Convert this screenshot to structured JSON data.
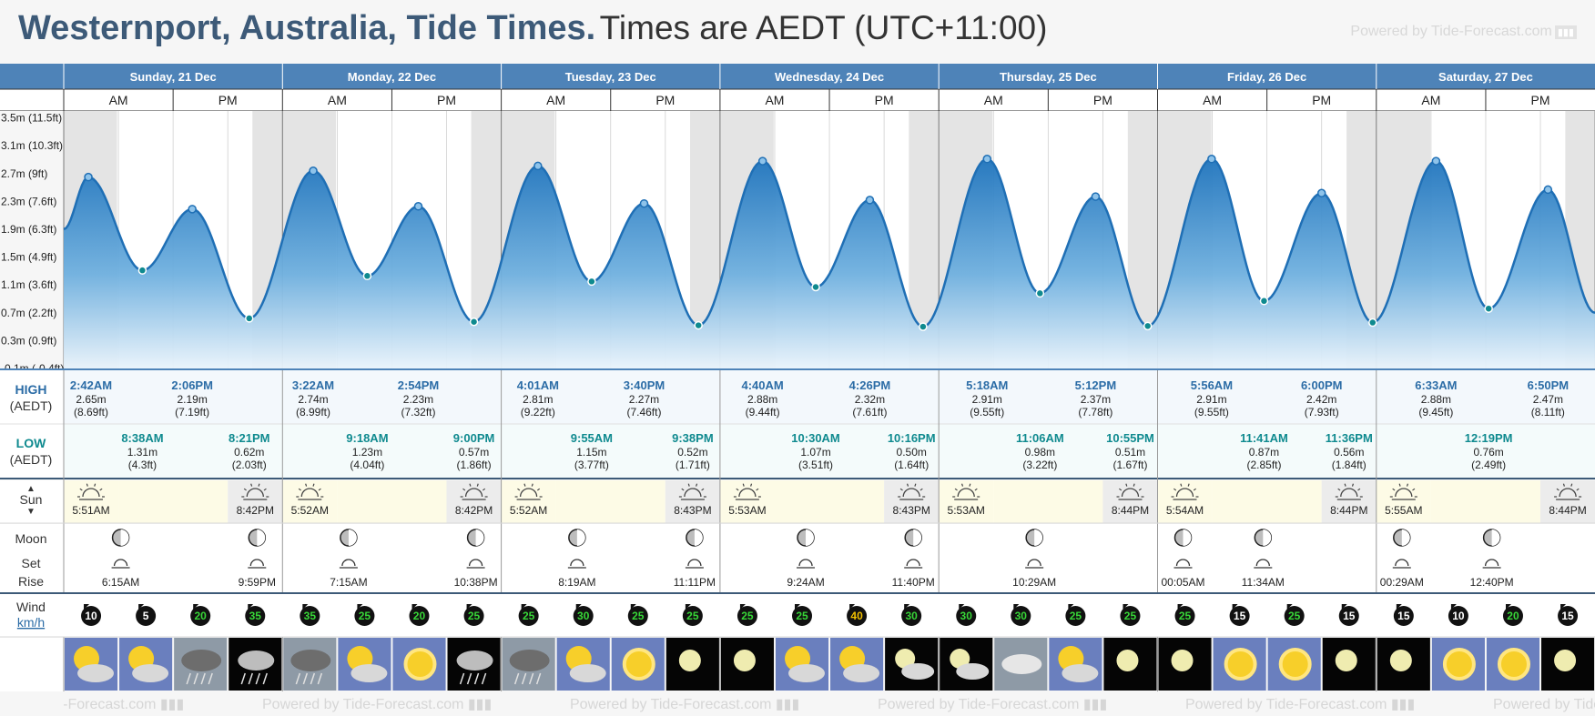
{
  "header": {
    "title": "Westernport, Australia, Tide Times.",
    "subtitle": "Times are AEDT (UTC+11:00)",
    "powered": "Powered by Tide-Forecast.com"
  },
  "colors": {
    "header_blue": "#3d5a78",
    "band_blue": "#4e83b8",
    "tide_fill_top": "#2a7fc4",
    "tide_line": "#1f6fb5",
    "high_label": "#2b6ca6",
    "low_label": "#0f8a8f",
    "sun_bg": "#fdfbe6"
  },
  "days": [
    {
      "label": "Sunday, 21 Dec",
      "am": "AM",
      "pm": "PM",
      "high": [
        {
          "time": "2:42AM",
          "m": "2.65m",
          "ft": "(8.69ft)"
        },
        {
          "time": "2:06PM",
          "m": "2.19m",
          "ft": "(7.19ft)"
        }
      ],
      "low": [
        {
          "time": "8:38AM",
          "m": "1.31m",
          "ft": "(4.3ft)"
        },
        {
          "time": "8:21PM",
          "m": "0.62m",
          "ft": "(2.03ft)"
        }
      ],
      "sunrise": "5:51AM",
      "sunset": "8:42PM",
      "moon": [
        {
          "kind": "set",
          "time": "6:15AM"
        },
        {
          "kind": "rise",
          "time": "9:59PM"
        }
      ]
    },
    {
      "label": "Monday, 22 Dec",
      "am": "AM",
      "pm": "PM",
      "high": [
        {
          "time": "3:22AM",
          "m": "2.74m",
          "ft": "(8.99ft)"
        },
        {
          "time": "2:54PM",
          "m": "2.23m",
          "ft": "(7.32ft)"
        }
      ],
      "low": [
        {
          "time": "9:18AM",
          "m": "1.23m",
          "ft": "(4.04ft)"
        },
        {
          "time": "9:00PM",
          "m": "0.57m",
          "ft": "(1.86ft)"
        }
      ],
      "sunrise": "5:52AM",
      "sunset": "8:42PM",
      "moon": [
        {
          "kind": "set",
          "time": "7:15AM"
        },
        {
          "kind": "rise",
          "time": "10:38PM"
        }
      ]
    },
    {
      "label": "Tuesday, 23 Dec",
      "am": "AM",
      "pm": "PM",
      "high": [
        {
          "time": "4:01AM",
          "m": "2.81m",
          "ft": "(9.22ft)"
        },
        {
          "time": "3:40PM",
          "m": "2.27m",
          "ft": "(7.46ft)"
        }
      ],
      "low": [
        {
          "time": "9:55AM",
          "m": "1.15m",
          "ft": "(3.77ft)"
        },
        {
          "time": "9:38PM",
          "m": "0.52m",
          "ft": "(1.71ft)"
        }
      ],
      "sunrise": "5:52AM",
      "sunset": "8:43PM",
      "moon": [
        {
          "kind": "set",
          "time": "8:19AM"
        },
        {
          "kind": "rise",
          "time": "11:11PM"
        }
      ]
    },
    {
      "label": "Wednesday, 24 Dec",
      "am": "AM",
      "pm": "PM",
      "high": [
        {
          "time": "4:40AM",
          "m": "2.88m",
          "ft": "(9.44ft)"
        },
        {
          "time": "4:26PM",
          "m": "2.32m",
          "ft": "(7.61ft)"
        }
      ],
      "low": [
        {
          "time": "10:30AM",
          "m": "1.07m",
          "ft": "(3.51ft)"
        },
        {
          "time": "10:16PM",
          "m": "0.50m",
          "ft": "(1.64ft)"
        }
      ],
      "sunrise": "5:53AM",
      "sunset": "8:43PM",
      "moon": [
        {
          "kind": "set",
          "time": "9:24AM"
        },
        {
          "kind": "rise",
          "time": "11:40PM"
        }
      ]
    },
    {
      "label": "Thursday, 25 Dec",
      "am": "AM",
      "pm": "PM",
      "high": [
        {
          "time": "5:18AM",
          "m": "2.91m",
          "ft": "(9.55ft)"
        },
        {
          "time": "5:12PM",
          "m": "2.37m",
          "ft": "(7.78ft)"
        }
      ],
      "low": [
        {
          "time": "11:06AM",
          "m": "0.98m",
          "ft": "(3.22ft)"
        },
        {
          "time": "10:55PM",
          "m": "0.51m",
          "ft": "(1.67ft)"
        }
      ],
      "sunrise": "5:53AM",
      "sunset": "8:44PM",
      "moon": [
        {
          "kind": "set",
          "time": "10:29AM"
        }
      ]
    },
    {
      "label": "Friday, 26 Dec",
      "am": "AM",
      "pm": "PM",
      "high": [
        {
          "time": "5:56AM",
          "m": "2.91m",
          "ft": "(9.55ft)"
        },
        {
          "time": "6:00PM",
          "m": "2.42m",
          "ft": "(7.93ft)"
        }
      ],
      "low": [
        {
          "time": "11:41AM",
          "m": "0.87m",
          "ft": "(2.85ft)"
        },
        {
          "time": "11:36PM",
          "m": "0.56m",
          "ft": "(1.84ft)"
        }
      ],
      "sunrise": "5:54AM",
      "sunset": "8:44PM",
      "moon": [
        {
          "kind": "rise",
          "time": "00:05AM"
        },
        {
          "kind": "set",
          "time": "11:34AM"
        }
      ]
    },
    {
      "label": "Saturday, 27 Dec",
      "am": "AM",
      "pm": "PM",
      "high": [
        {
          "time": "6:33AM",
          "m": "2.88m",
          "ft": "(9.45ft)"
        },
        {
          "time": "6:50PM",
          "m": "2.47m",
          "ft": "(8.11ft)"
        }
      ],
      "low": [
        {
          "time": "12:19PM",
          "m": "0.76m",
          "ft": "(2.49ft)"
        }
      ],
      "sunrise": "5:55AM",
      "sunset": "8:44PM",
      "moon": [
        {
          "kind": "rise",
          "time": "00:29AM"
        },
        {
          "kind": "set",
          "time": "12:40PM"
        }
      ]
    }
  ],
  "rows": {
    "high_label": "HIGH",
    "high_tz": "(AEDT)",
    "low_label": "LOW",
    "low_tz": "(AEDT)",
    "sun_label": "Sun",
    "moon_label": "Moon",
    "moon_set": "Set",
    "moon_rise": "Rise",
    "wind_label": "Wind",
    "wind_unit": "km/h"
  },
  "wind": [
    10,
    5,
    20,
    35,
    35,
    25,
    20,
    25,
    25,
    30,
    25,
    25,
    25,
    25,
    40,
    30,
    30,
    30,
    25,
    25,
    25,
    15,
    25,
    15,
    15,
    10,
    20,
    15
  ],
  "weather": [
    "partly-cloudy",
    "partly-cloudy",
    "rain",
    "night-rain",
    "rain",
    "partly-cloudy",
    "sunny",
    "night-rain",
    "rain",
    "partly-cloudy",
    "sunny",
    "moon",
    "moon",
    "partly-cloudy",
    "partly-cloudy",
    "night-cloudy",
    "night-cloudy",
    "cloudy",
    "partly-cloudy",
    "moon",
    "moon",
    "sunny",
    "sunny",
    "moon",
    "moon",
    "sunny",
    "sunny",
    "moon"
  ],
  "chart_data": {
    "type": "area",
    "ylabel_ticks": [
      "3.5m (11.5ft)",
      "3.1m (10.3ft)",
      "2.7m (9ft)",
      "2.3m (7.6ft)",
      "1.9m (6.3ft)",
      "1.5m (4.9ft)",
      "1.1m (3.6ft)",
      "0.7m (2.2ft)",
      "0.3m (0.9ft)",
      "-0.1m (-0.4ft)"
    ],
    "ylabel_values": [
      3.5,
      3.1,
      2.7,
      2.3,
      1.9,
      1.5,
      1.1,
      0.7,
      0.3,
      -0.1
    ],
    "ylim": [
      -0.1,
      3.6
    ],
    "x_unit": "hours since Sunday 21 Dec 00:00",
    "xlim": [
      0,
      168
    ],
    "series": [
      {
        "name": "",
        "points": [
          [
            0,
            1.9
          ],
          [
            2.7,
            2.65
          ],
          [
            8.63,
            1.31
          ],
          [
            14.1,
            2.19
          ],
          [
            20.35,
            0.62
          ],
          [
            27.37,
            2.74
          ],
          [
            33.3,
            1.23
          ],
          [
            38.9,
            2.23
          ],
          [
            45.0,
            0.57
          ],
          [
            52.02,
            2.81
          ],
          [
            57.92,
            1.15
          ],
          [
            63.67,
            2.27
          ],
          [
            69.63,
            0.52
          ],
          [
            76.67,
            2.88
          ],
          [
            82.5,
            1.07
          ],
          [
            88.43,
            2.32
          ],
          [
            94.27,
            0.5
          ],
          [
            101.3,
            2.91
          ],
          [
            107.1,
            0.98
          ],
          [
            113.2,
            2.37
          ],
          [
            118.92,
            0.51
          ],
          [
            125.93,
            2.91
          ],
          [
            131.68,
            0.87
          ],
          [
            138.0,
            2.42
          ],
          [
            143.6,
            0.56
          ],
          [
            150.55,
            2.88
          ],
          [
            156.32,
            0.76
          ],
          [
            162.83,
            2.47
          ],
          [
            168,
            0.7
          ]
        ]
      }
    ]
  }
}
